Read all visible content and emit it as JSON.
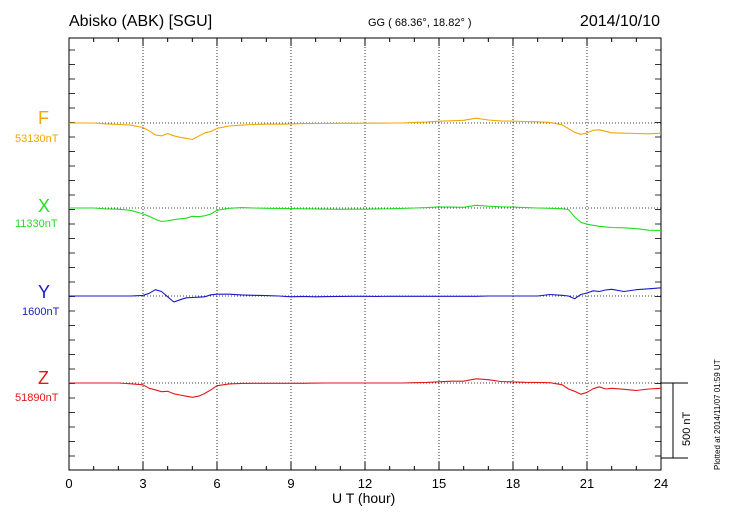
{
  "header": {
    "station": "Abisko (ABK)  [SGU]",
    "coords": "GG ( 68.36°,  18.82° )",
    "date": "2014/10/10"
  },
  "footer": {
    "plotted": "Plotted at 2014/11/07 01:59 UT"
  },
  "scale": {
    "label": "500 nT",
    "value": 500
  },
  "chart_data": {
    "type": "line",
    "title": "Abisko (ABK)  [SGU]",
    "xlabel": "U T (hour)",
    "ylabel": "",
    "xlim": [
      0,
      24
    ],
    "xticks": [
      "0",
      "3",
      "6",
      "9",
      "12",
      "15",
      "18",
      "21",
      "24"
    ],
    "x": [
      0,
      0.5,
      1,
      1.5,
      2,
      2.5,
      3,
      3.25,
      3.5,
      3.75,
      4,
      4.25,
      4.5,
      4.75,
      5,
      5.25,
      5.5,
      5.75,
      6,
      6.5,
      7,
      7.5,
      8,
      8.5,
      9,
      9.5,
      10,
      10.5,
      11,
      11.5,
      12,
      12.5,
      13,
      13.5,
      14,
      14.5,
      15,
      15.5,
      16,
      16.5,
      17,
      17.5,
      18,
      18.5,
      19,
      19.5,
      20,
      20.25,
      20.5,
      20.75,
      21,
      21.25,
      21.5,
      21.75,
      22,
      22.5,
      23,
      23.5,
      24
    ],
    "grid": true,
    "series": [
      {
        "name": "F",
        "baseline": "53130nT",
        "color": "#f0a800",
        "values": [
          0,
          0,
          0,
          -6,
          -10,
          -14,
          -30,
          -52,
          -80,
          -85,
          -70,
          -85,
          -95,
          -102,
          -110,
          -88,
          -66,
          -57,
          -35,
          -20,
          -14,
          -10,
          -8,
          -8,
          -6,
          -4,
          -3,
          -3,
          -2,
          -2,
          -1,
          -1,
          0,
          0,
          4,
          6,
          12,
          15,
          18,
          32,
          20,
          14,
          12,
          10,
          8,
          4,
          -12,
          -38,
          -62,
          -75,
          -66,
          -48,
          -45,
          -55,
          -65,
          -68,
          -70,
          -72,
          -68
        ]
      },
      {
        "name": "X",
        "baseline": "11330nT",
        "color": "#22dd22",
        "values": [
          0,
          0,
          0,
          -6,
          -8,
          -15,
          -40,
          -55,
          -75,
          -90,
          -85,
          -78,
          -72,
          -68,
          -55,
          -58,
          -52,
          -40,
          -15,
          -2,
          3,
          0,
          -2,
          -3,
          -4,
          -5,
          -6,
          -8,
          -9,
          -8,
          -8,
          -6,
          -5,
          -3,
          0,
          3,
          7,
          6,
          5,
          18,
          12,
          8,
          6,
          3,
          0,
          -2,
          -5,
          -10,
          -60,
          -95,
          -108,
          -115,
          -122,
          -126,
          -130,
          -132,
          -138,
          -148,
          -150
        ]
      },
      {
        "name": "Y",
        "baseline": "1600nT",
        "color": "#1818cc",
        "values": [
          0,
          0,
          0,
          0,
          0,
          0,
          4,
          18,
          42,
          30,
          -5,
          -40,
          -25,
          -12,
          -10,
          -8,
          -5,
          8,
          12,
          12,
          7,
          5,
          3,
          0,
          -5,
          -3,
          -5,
          -4,
          -3,
          -2,
          -2,
          -3,
          -2,
          -2,
          -2,
          -2,
          -2,
          -2,
          -2,
          -2,
          0,
          0,
          0,
          0,
          0,
          10,
          5,
          0,
          -18,
          10,
          20,
          35,
          30,
          40,
          45,
          30,
          42,
          48,
          55
        ]
      },
      {
        "name": "Z",
        "baseline": "51890nT",
        "color": "#e01818",
        "values": [
          0,
          0,
          0,
          0,
          0,
          -5,
          -12,
          -35,
          -45,
          -58,
          -55,
          -72,
          -80,
          -88,
          -95,
          -88,
          -70,
          -46,
          -18,
          -6,
          -3,
          -2,
          -2,
          -2,
          -2,
          -2,
          -1,
          0,
          0,
          0,
          0,
          0,
          0,
          0,
          2,
          4,
          8,
          12,
          12,
          28,
          22,
          10,
          7,
          5,
          4,
          2,
          -12,
          -40,
          -55,
          -75,
          -62,
          -38,
          -25,
          -40,
          -35,
          -42,
          -50,
          -40,
          -35
        ]
      }
    ]
  }
}
